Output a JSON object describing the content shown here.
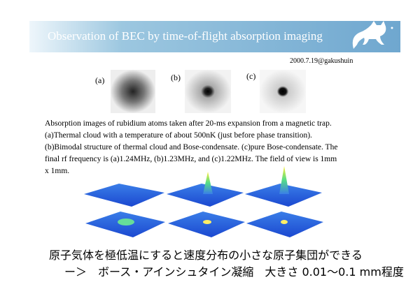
{
  "header": {
    "title": "Observation of BEC by time-of-flight absorption imaging",
    "date": "2000.7.19@gakushuin"
  },
  "images": [
    {
      "label": "(a)"
    },
    {
      "label": "(b)"
    },
    {
      "label": "(c)"
    }
  ],
  "caption": {
    "lines": [
      "Absorption images of rubidium atoms taken after 20-ms expansion from a magnetic trap.",
      "(a)Thermal cloud with a temperature of about 500nK (just before phase transition).",
      "(b)Bimodal structure of thermal cloud and Bose-condensate. (c)pure Bose-condensate. The",
      "final rf frequency is (a)1.24MHz, (b)1.23MHz, and (c)1.22MHz. The field of view is 1mm",
      "x 1mm."
    ]
  },
  "summary": {
    "lines": [
      "原子気体を極低温にすると速度分布の小さな原子集団ができる",
      "ー＞　ボース・アインシュタイン凝縮　大きさ 0.01～0.1 mm程度"
    ]
  }
}
